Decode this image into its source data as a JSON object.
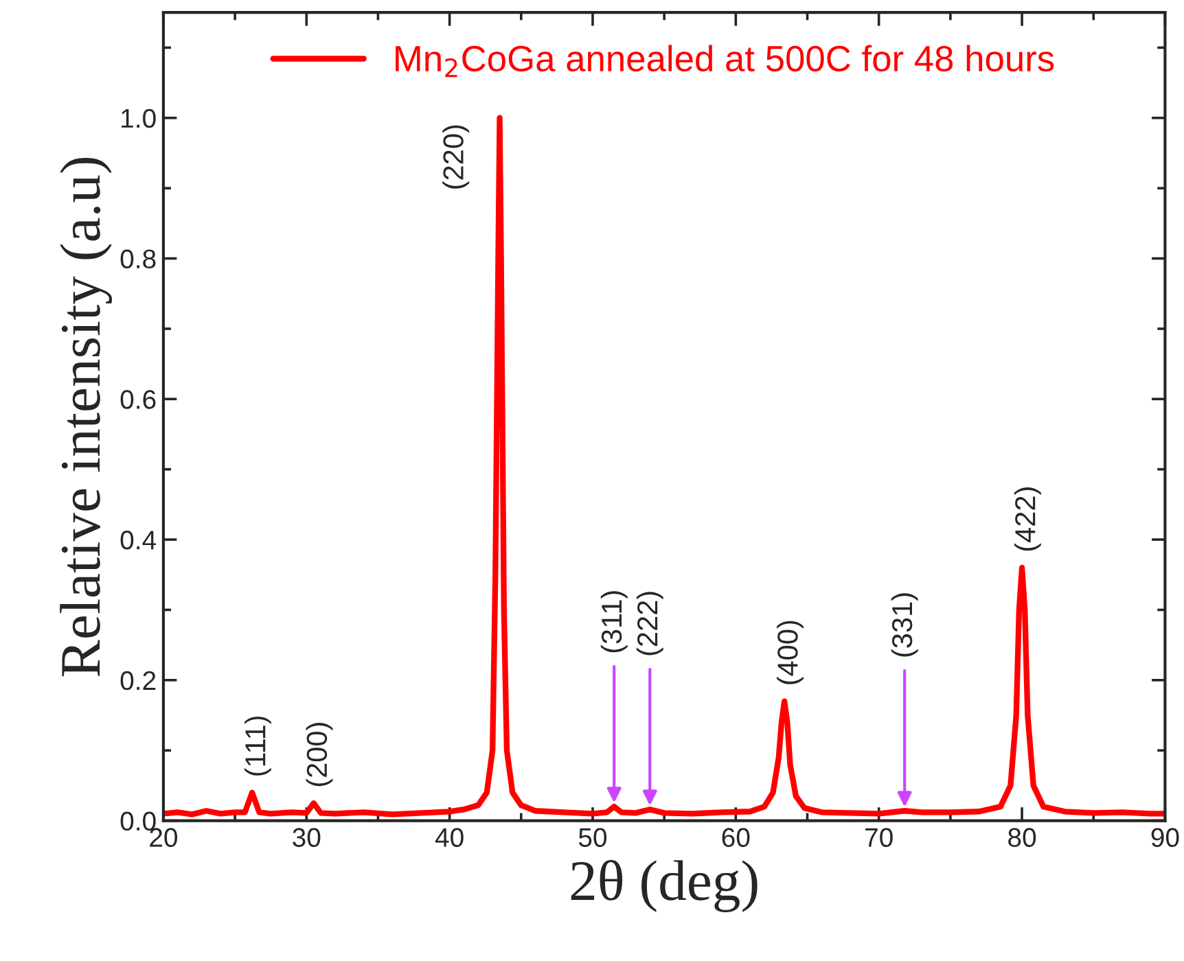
{
  "chart_data": {
    "type": "line",
    "xlabel": "2θ (deg)",
    "ylabel": "Relative intensity (a.u)",
    "xlim": [
      20,
      90
    ],
    "ylim": [
      0,
      1.15
    ],
    "xticks": [
      20,
      30,
      40,
      50,
      60,
      70,
      80,
      90
    ],
    "yticks": [
      {
        "value": 0,
        "label": "0.0"
      },
      {
        "value": 0.2,
        "label": "0.2"
      },
      {
        "value": 0.4,
        "label": "0.4"
      },
      {
        "value": 0.6,
        "label": "0.6"
      },
      {
        "value": 0.8,
        "label": "0.8"
      },
      {
        "value": 1.0,
        "label": "1.0"
      }
    ],
    "grid": false,
    "legend": "top",
    "marker": "none",
    "line_style": "solid",
    "series": [
      {
        "name": "Mn$_{2}$CoGa annealed at 500C for 48 hours",
        "color": "#ff0000",
        "x": [
          20,
          21,
          22,
          23,
          24,
          25,
          25.7,
          26.2,
          26.7,
          27.5,
          29,
          30,
          30.5,
          31,
          32,
          34,
          36,
          38,
          40,
          41,
          42,
          42.6,
          43.0,
          43.2,
          43.4,
          43.5,
          43.6,
          43.8,
          44.0,
          44.4,
          45,
          46,
          48,
          50,
          51,
          51.5,
          52,
          53,
          54,
          55,
          57,
          59,
          61,
          62,
          62.6,
          63.0,
          63.2,
          63.4,
          63.6,
          63.8,
          64.2,
          64.8,
          66,
          68,
          70,
          71.8,
          73,
          75,
          77,
          78.5,
          79.2,
          79.6,
          79.8,
          80.0,
          80.2,
          80.4,
          80.8,
          81.5,
          83,
          85,
          87,
          89,
          90
        ],
        "values": [
          0.01,
          0.012,
          0.009,
          0.014,
          0.01,
          0.012,
          0.012,
          0.04,
          0.012,
          0.01,
          0.012,
          0.011,
          0.025,
          0.011,
          0.01,
          0.012,
          0.009,
          0.011,
          0.013,
          0.016,
          0.022,
          0.04,
          0.1,
          0.35,
          0.8,
          1.0,
          0.8,
          0.3,
          0.1,
          0.04,
          0.022,
          0.014,
          0.012,
          0.01,
          0.012,
          0.02,
          0.012,
          0.011,
          0.016,
          0.011,
          0.01,
          0.012,
          0.013,
          0.02,
          0.04,
          0.09,
          0.14,
          0.17,
          0.14,
          0.08,
          0.035,
          0.018,
          0.012,
          0.011,
          0.01,
          0.014,
          0.012,
          0.012,
          0.013,
          0.02,
          0.05,
          0.15,
          0.3,
          0.36,
          0.3,
          0.15,
          0.05,
          0.02,
          0.013,
          0.011,
          0.012,
          0.01,
          0.01
        ]
      }
    ],
    "annotations": [
      {
        "text": "(111)",
        "x": 26.2,
        "y": 0.04
      },
      {
        "text": "(200)",
        "x": 30.5,
        "y": 0.025
      },
      {
        "text": "(220)",
        "x": 43.5,
        "y": 1.0
      },
      {
        "text": "(311)",
        "x": 51.5,
        "y": 0.02
      },
      {
        "text": "(222)",
        "x": 54,
        "y": 0.016
      },
      {
        "text": "(400)",
        "x": 63.4,
        "y": 0.17
      },
      {
        "text": "(331)",
        "x": 71.8,
        "y": 0.014
      },
      {
        "text": "(422)",
        "x": 80.0,
        "y": 0.36
      }
    ]
  }
}
